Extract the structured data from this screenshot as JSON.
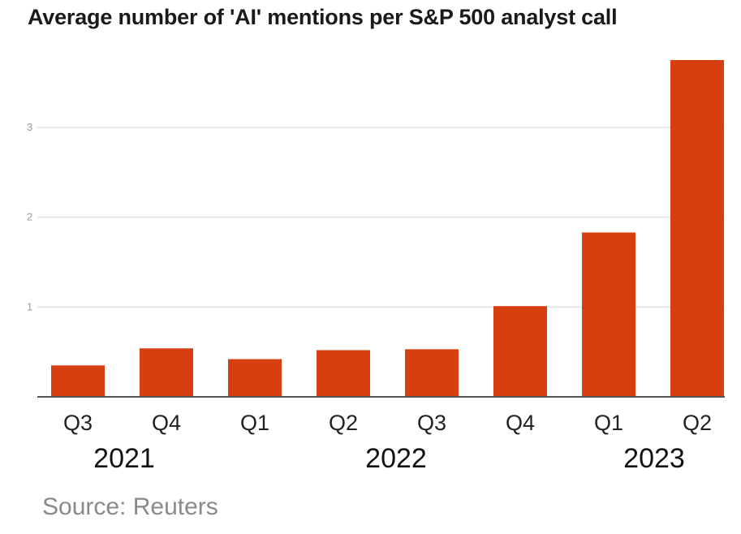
{
  "chart_data": {
    "type": "bar",
    "title": "Average number of 'AI' mentions per S&P 500 analyst call",
    "categories": [
      "Q3",
      "Q4",
      "Q1",
      "Q2",
      "Q3",
      "Q4",
      "Q1",
      "Q2"
    ],
    "years": [
      "2021",
      "2022",
      "2023"
    ],
    "values": [
      0.35,
      0.54,
      0.42,
      0.52,
      0.53,
      1.01,
      1.83,
      3.75
    ],
    "ylim": [
      0,
      3.75
    ],
    "yticks": [
      1,
      2,
      3
    ],
    "grid": true,
    "bar_color": "#d64010"
  },
  "source": "Source: Reuters",
  "colors": {
    "bar": "#d64010",
    "grid": "#e3e3e3",
    "axis": "#555555"
  }
}
